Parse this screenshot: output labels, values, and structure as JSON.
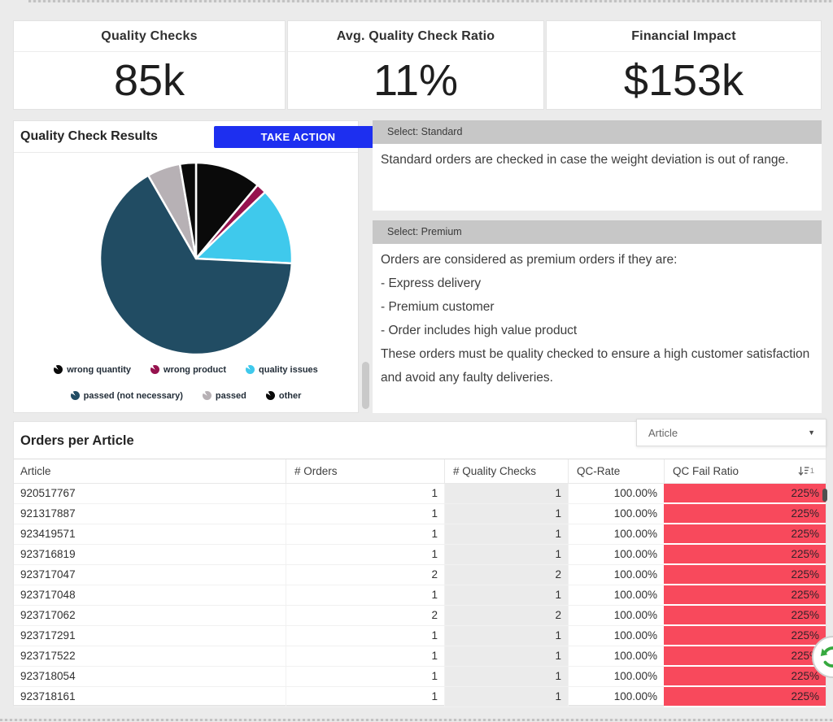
{
  "kpis": [
    {
      "label": "Quality Checks",
      "value": "85k"
    },
    {
      "label": "Avg. Quality Check Ratio",
      "value": "11%"
    },
    {
      "label": "Financial Impact",
      "value": "$153k"
    }
  ],
  "quality_panel": {
    "title": "Quality Check Results",
    "action_label": "TAKE ACTION"
  },
  "chart_data": {
    "type": "pie",
    "title": "Quality Check Results",
    "legend_position": "bottom",
    "slices": [
      {
        "label": "wrong quantity",
        "color": "#0a0a0a",
        "percent": 11.1
      },
      {
        "label": "wrong product",
        "color": "#96124e",
        "percent": 1.7
      },
      {
        "label": "quality issues",
        "color": "#3fc9ec",
        "percent": 13.0
      },
      {
        "label": "passed (not necessary)",
        "color": "#214c63",
        "percent": 65.9
      },
      {
        "label": "passed",
        "color": "#b7b1b5",
        "percent": 5.6
      },
      {
        "label": "other",
        "color": "#0a0a0a",
        "percent": 2.7
      }
    ],
    "legend_rows": [
      3,
      3
    ]
  },
  "info_sections": [
    {
      "header": "Select: Standard",
      "text": "Standard orders are checked in case the weight deviation is out of range."
    },
    {
      "header": "Select: Premium",
      "lines": [
        "Orders are considered as premium orders if they are:",
        " - Express delivery",
        " - Premium customer",
        " - Order includes high value product",
        "These orders must be quality checked to ensure a high customer satisfaction and avoid any faulty deliveries."
      ]
    }
  ],
  "orders_table": {
    "title": "Orders per Article",
    "filter_value": "Article",
    "columns": [
      "Article",
      "# Orders",
      "# Quality Checks",
      "QC-Rate",
      "QC Fail Ratio"
    ],
    "sort_indicator": "1",
    "rows": [
      [
        "920517767",
        "1",
        "1",
        "100.00%",
        "225%"
      ],
      [
        "921317887",
        "1",
        "1",
        "100.00%",
        "225%"
      ],
      [
        "923419571",
        "1",
        "1",
        "100.00%",
        "225%"
      ],
      [
        "923716819",
        "1",
        "1",
        "100.00%",
        "225%"
      ],
      [
        "923717047",
        "2",
        "2",
        "100.00%",
        "225%"
      ],
      [
        "923717048",
        "1",
        "1",
        "100.00%",
        "225%"
      ],
      [
        "923717062",
        "2",
        "2",
        "100.00%",
        "225%"
      ],
      [
        "923717291",
        "1",
        "1",
        "100.00%",
        "225%"
      ],
      [
        "923717522",
        "1",
        "1",
        "100.00%",
        "225%"
      ],
      [
        "923718054",
        "1",
        "1",
        "100.00%",
        "225%"
      ],
      [
        "923718161",
        "1",
        "1",
        "100.00%",
        "225%"
      ]
    ]
  },
  "colors": {
    "accent_blue": "#1d2ff0",
    "fail_cell": "#f8495c",
    "qc_column_bg": "#ebebeb",
    "section_header_bg": "#c7c7c7",
    "badge_green": "#36a93f"
  }
}
